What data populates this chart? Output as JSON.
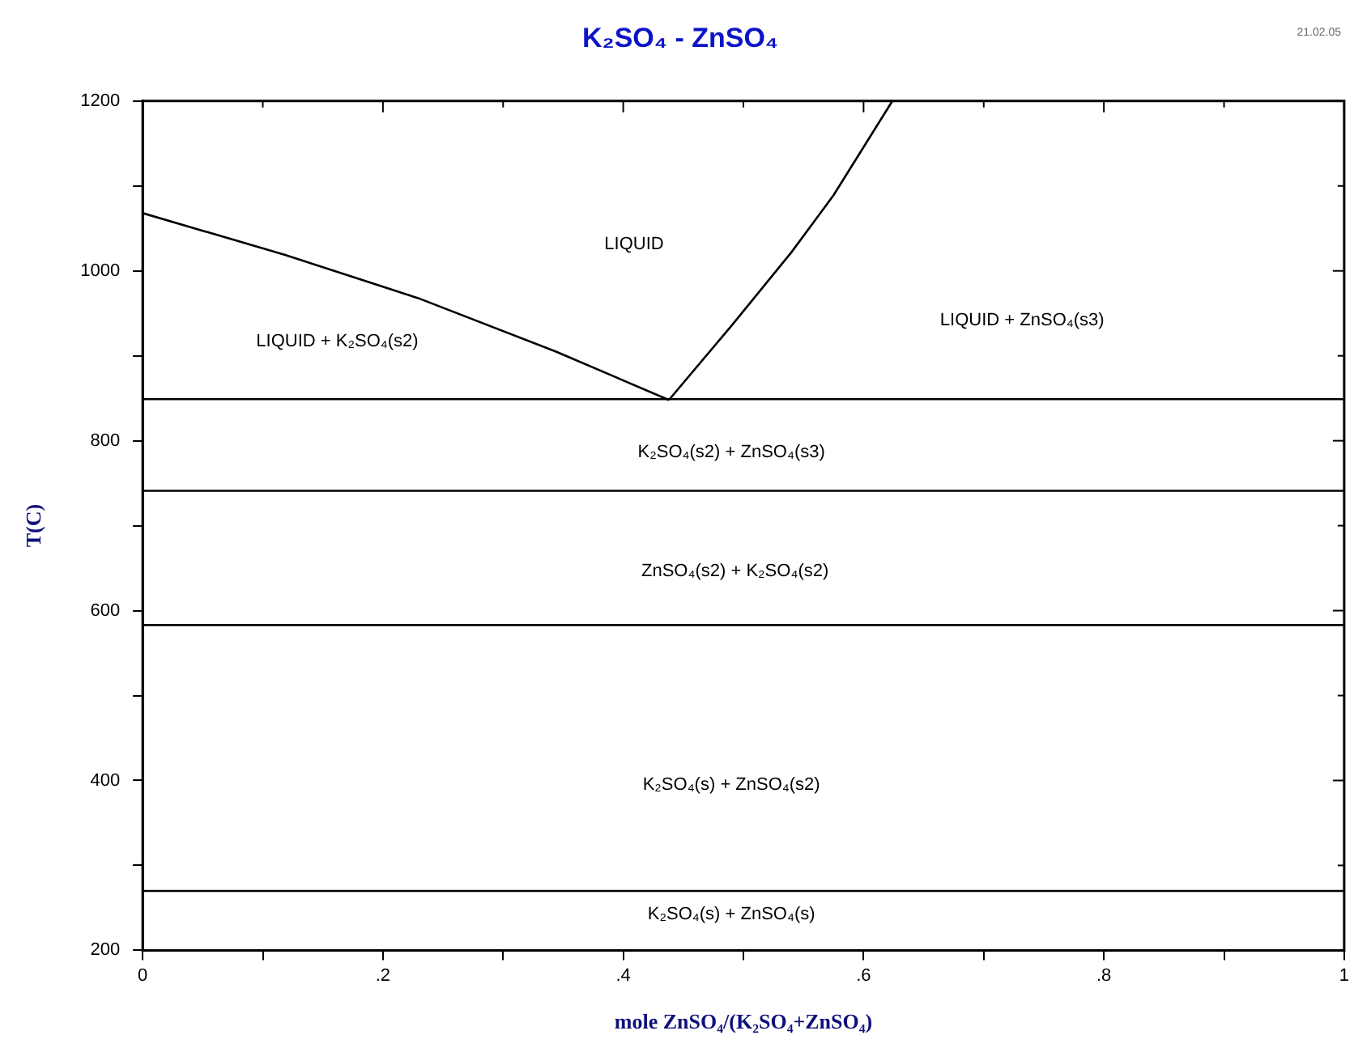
{
  "chart_data": {
    "type": "line",
    "title": "K₂SO₄ - ZnSO₄",
    "xlabel": "mole ZnSO₄/(K₂SO₄+ZnSO₄)",
    "ylabel": "T(C)",
    "xlim": [
      0,
      1
    ],
    "ylim": [
      200,
      1200
    ],
    "xticks": [
      0,
      {
        "value": 0.1,
        "label": null
      },
      {
        "value": 0.2,
        "label": ".2"
      },
      {
        "value": 0.3,
        "label": null
      },
      {
        "value": 0.4,
        "label": ".4"
      },
      {
        "value": 0.5,
        "label": null
      },
      {
        "value": 0.6,
        "label": ".6"
      },
      {
        "value": 0.7,
        "label": null
      },
      {
        "value": 0.8,
        "label": ".8"
      },
      {
        "value": 0.9,
        "label": null
      },
      1
    ],
    "yticks": [
      200,
      {
        "value": 300,
        "label": null
      },
      400,
      {
        "value": 500,
        "label": null
      },
      600,
      {
        "value": 700,
        "label": null
      },
      800,
      {
        "value": 900,
        "label": null
      },
      1000,
      {
        "value": 1100,
        "label": null
      },
      1200
    ],
    "grid": false,
    "legend": false,
    "marker": "none",
    "line_style": "solid",
    "series": [
      {
        "color": "#000000",
        "x": [
          0,
          0.118,
          0.231,
          0.344,
          0.438
        ],
        "values": [
          1068,
          1019,
          967,
          905,
          848
        ]
      },
      {
        "color": "#000000",
        "x": [
          0.438,
          0.491,
          0.54,
          0.575,
          0.624
        ],
        "values": [
          848,
          937,
          1022,
          1089,
          1200
        ]
      },
      {
        "color": "#000000",
        "x": [
          0,
          1
        ],
        "values": [
          849,
          849
        ]
      },
      {
        "color": "#000000",
        "x": [
          0,
          1
        ],
        "values": [
          741,
          741
        ]
      },
      {
        "color": "#000000",
        "x": [
          0,
          1
        ],
        "values": [
          583,
          583
        ]
      },
      {
        "color": "#000000",
        "x": [
          0,
          1
        ],
        "values": [
          270,
          270
        ]
      }
    ],
    "annotations": [
      "LIQUID",
      "LIQUID + K₂SO₄(s2)",
      "LIQUID + ZnSO₄(s3)",
      "K₂SO₄(s2) + ZnSO₄(s3)",
      "ZnSO₄(s2) + K₂SO₄(s2)",
      "K₂SO₄(s) + ZnSO₄(s2)",
      "K₂SO₄(s) + ZnSO₄(s)",
      "21.02.05"
    ]
  }
}
